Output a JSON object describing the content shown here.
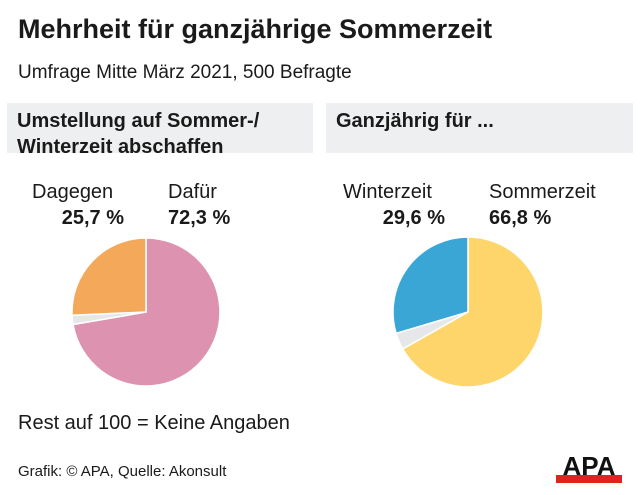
{
  "title": "Mehrheit für ganzjährige Sommerzeit",
  "subtitle": "Umfrage Mitte März 2021, 500 Befragte",
  "note": "Rest auf 100 = Keine Angaben",
  "source": "Grafik: © APA, Quelle: Akonsult",
  "logo": "APA",
  "chart_data": [
    {
      "type": "pie",
      "title": "Umstellung auf Sommer-/ Winterzeit abschaffen",
      "slices": [
        {
          "label": "Dafür",
          "value": 72.3,
          "value_label": "72,3 %",
          "color": "#dd93b0"
        },
        {
          "label": "",
          "value": 2.0,
          "value_label": "",
          "color": "#e5e7e8"
        },
        {
          "label": "Dagegen",
          "value": 25.7,
          "value_label": "25,7 %",
          "color": "#f3a85a"
        }
      ]
    },
    {
      "type": "pie",
      "title": "Ganzjährig für ...",
      "slices": [
        {
          "label": "Sommerzeit",
          "value": 66.8,
          "value_label": "66,8 %",
          "color": "#fdd56a"
        },
        {
          "label": "",
          "value": 3.6,
          "value_label": "",
          "color": "#e5e7e8"
        },
        {
          "label": "Winterzeit",
          "value": 29.6,
          "value_label": "29,6 %",
          "color": "#3aa6d6"
        }
      ]
    }
  ]
}
